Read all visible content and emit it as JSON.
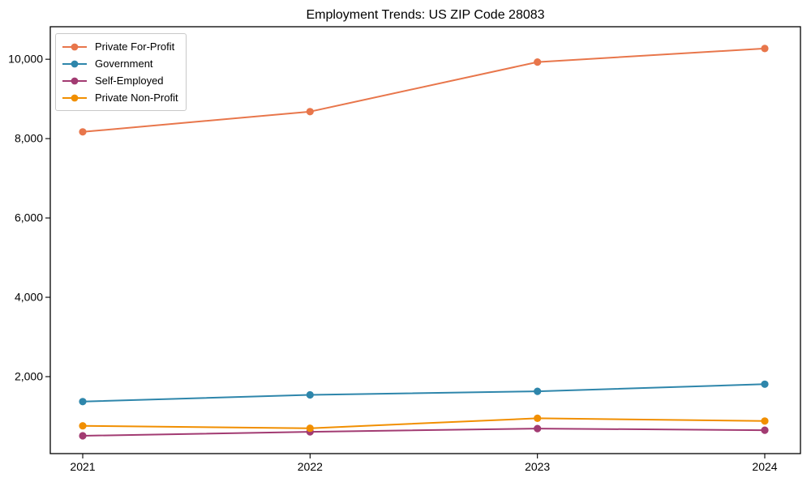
{
  "chart_data": {
    "type": "line",
    "title": "Employment Trends: US ZIP Code 28083",
    "categories": [
      "2021",
      "2022",
      "2023",
      "2024"
    ],
    "series": [
      {
        "name": "Private For-Profit",
        "color": "#E8764B",
        "values": [
          8170,
          8680,
          9930,
          10270
        ]
      },
      {
        "name": "Government",
        "color": "#2E86AB",
        "values": [
          1370,
          1540,
          1630,
          1810
        ]
      },
      {
        "name": "Self-Employed",
        "color": "#A23B72",
        "values": [
          510,
          610,
          690,
          650
        ]
      },
      {
        "name": "Private Non-Profit",
        "color": "#F18F01",
        "values": [
          760,
          700,
          950,
          880
        ]
      }
    ],
    "xlabel": "",
    "ylabel": "",
    "ylim": [
      60,
      10820
    ],
    "yticks": [
      2000,
      4000,
      6000,
      8000,
      10000
    ],
    "ytick_labels": [
      "2,000",
      "4,000",
      "6,000",
      "8,000",
      "10,000"
    ],
    "grid": false,
    "legend_position": "upper-left",
    "marker": "circle",
    "axis_color": "#000000",
    "background_color": "#ffffff"
  }
}
